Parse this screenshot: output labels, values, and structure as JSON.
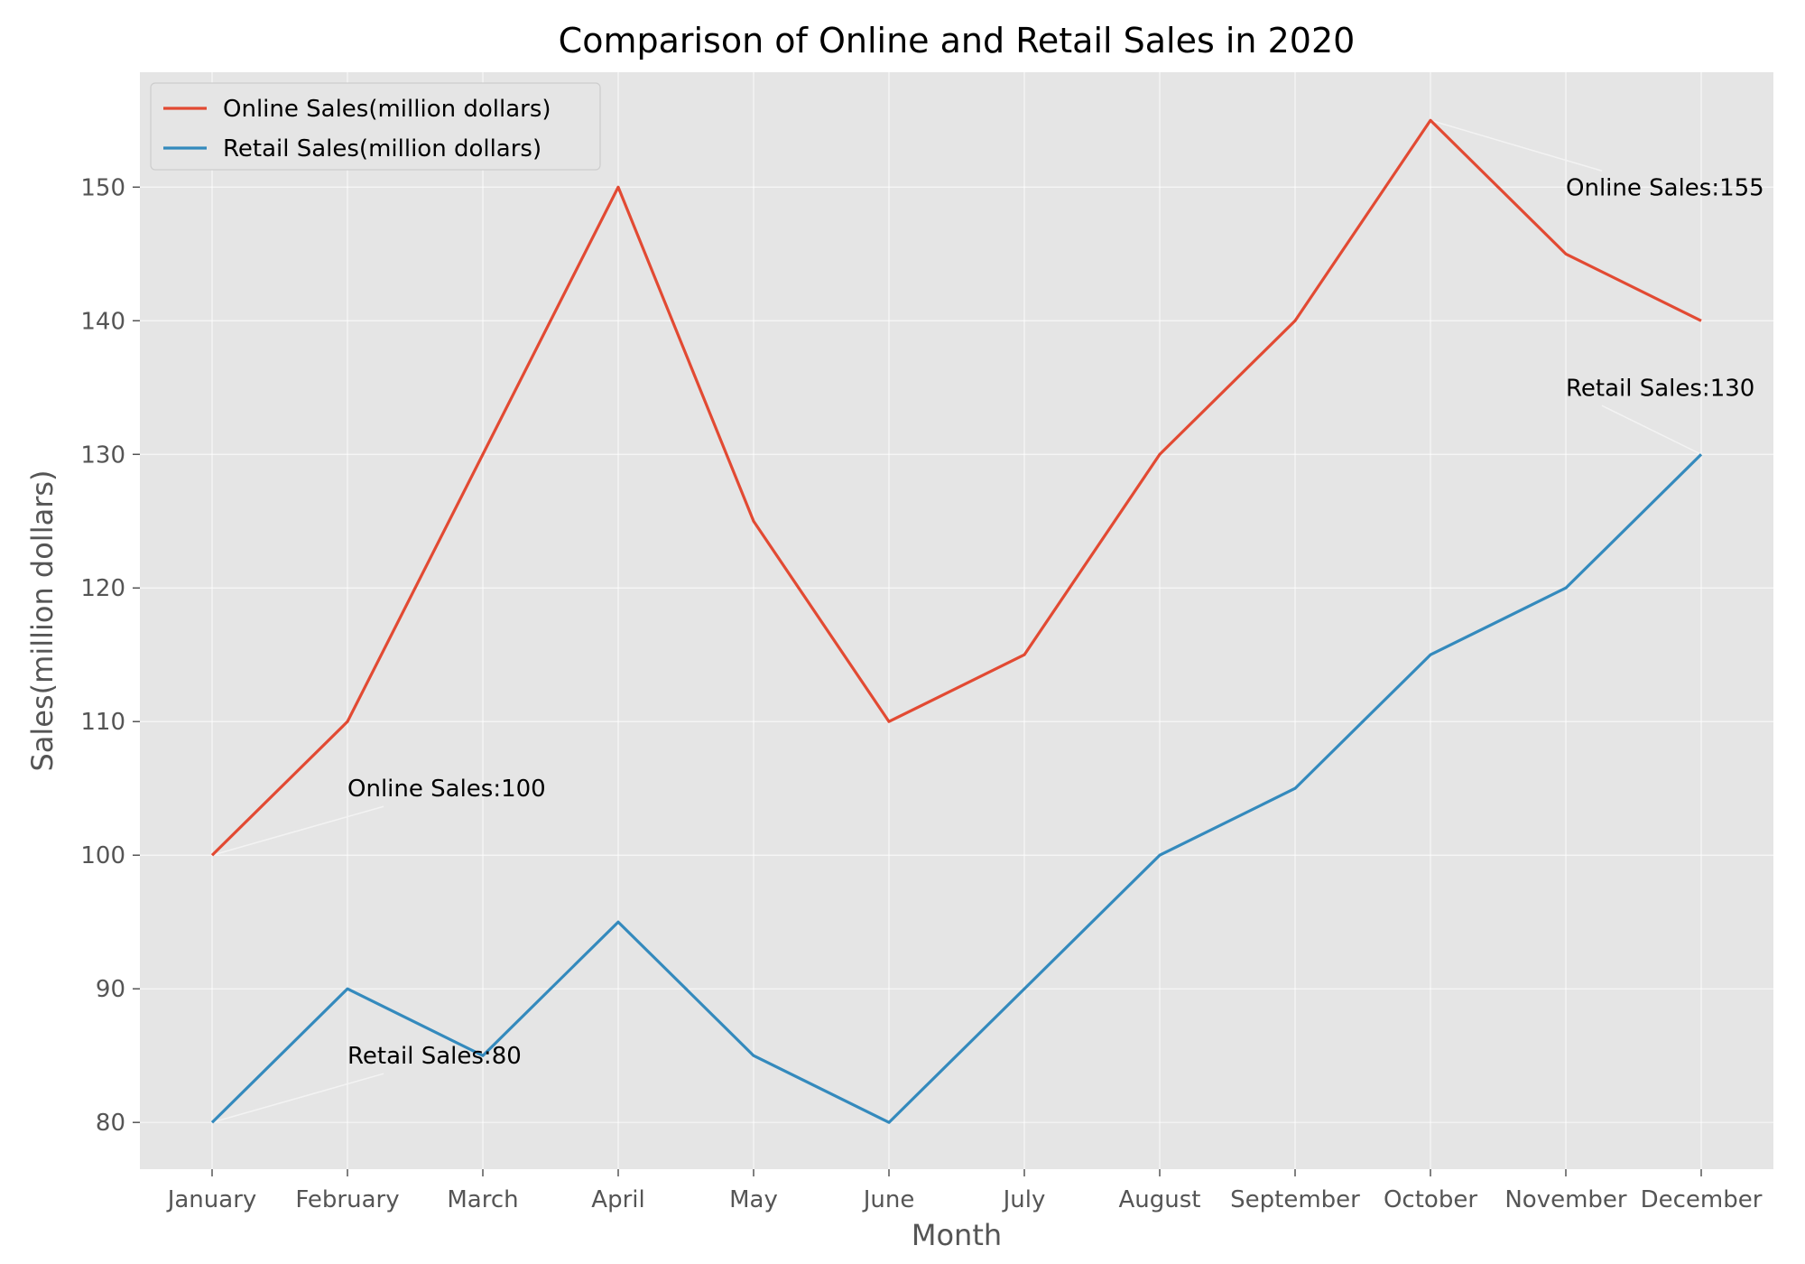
{
  "chart_data": {
    "type": "line",
    "title": "Comparison of Online and Retail Sales in 2020",
    "xlabel": "Month",
    "ylabel": "Sales(million dollars)",
    "categories": [
      "January",
      "February",
      "March",
      "April",
      "May",
      "June",
      "July",
      "August",
      "September",
      "October",
      "November",
      "December"
    ],
    "ylim": [
      76.5,
      158.6
    ],
    "yticks": [
      80,
      90,
      100,
      110,
      120,
      130,
      140,
      150
    ],
    "grid": true,
    "legend_position": "top-left",
    "series": [
      {
        "name": "Online Sales(million dollars)",
        "color": "#e24a33",
        "values": [
          100,
          110,
          130,
          150,
          125,
          110,
          115,
          130,
          140,
          155,
          145,
          140
        ]
      },
      {
        "name": "Retail Sales(million dollars)",
        "color": "#348abd",
        "values": [
          80,
          90,
          85,
          95,
          85,
          80,
          90,
          100,
          105,
          115,
          120,
          130
        ]
      }
    ],
    "annotations": [
      {
        "text": "Online Sales:100",
        "point": {
          "category": "January",
          "value": 100
        },
        "text_at": {
          "category": "February",
          "value": 105
        }
      },
      {
        "text": "Retail Sales:80",
        "point": {
          "category": "January",
          "value": 80
        },
        "text_at": {
          "category": "February",
          "value": 85
        }
      },
      {
        "text": "Online Sales:155",
        "point": {
          "category": "October",
          "value": 155
        },
        "text_at": {
          "category": "November",
          "value": 150
        }
      },
      {
        "text": "Retail Sales:130",
        "point": {
          "category": "December",
          "value": 130
        },
        "text_at": {
          "category": "November",
          "value": 135
        }
      }
    ]
  }
}
